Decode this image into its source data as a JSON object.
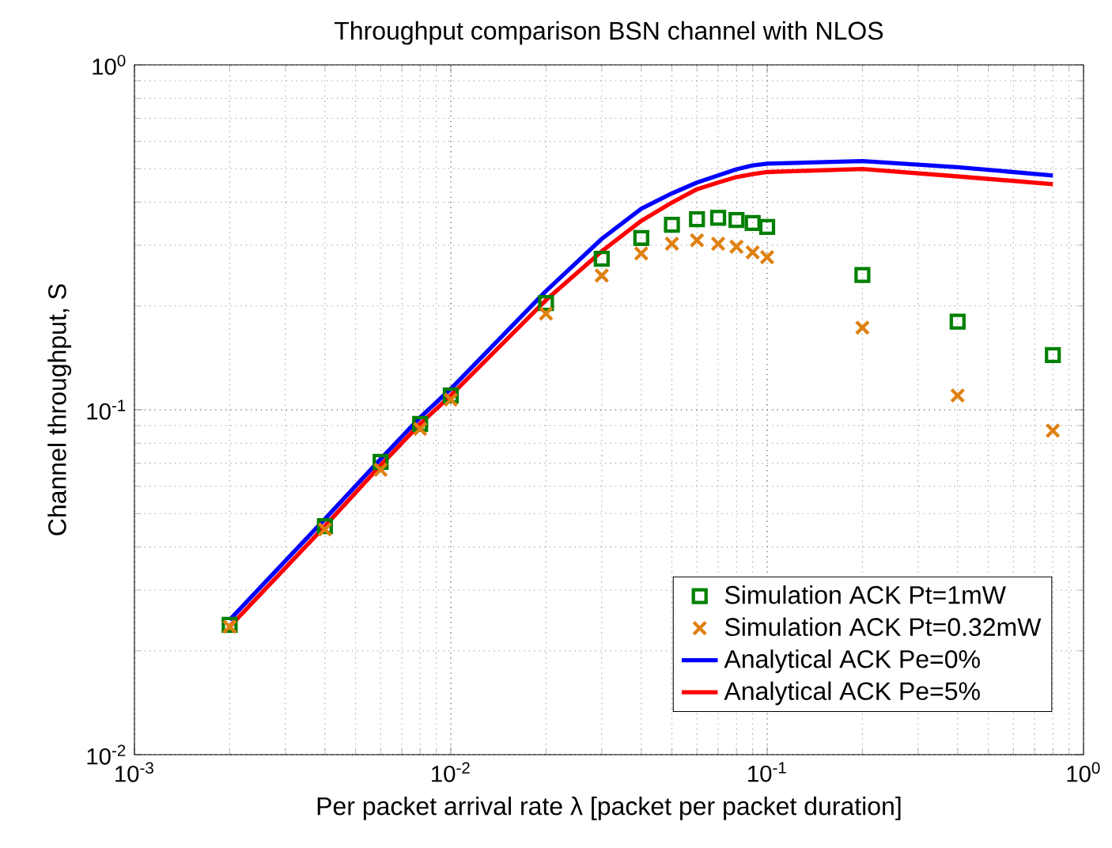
{
  "chart_data": {
    "type": "scatter",
    "title": "Throughput comparison BSN channel with  NLOS",
    "xlabel": "Per packet arrival rate λ [packet per packet duration]",
    "ylabel": "Channel throughput, S",
    "log": "xy",
    "grid": true,
    "legend": "bottom right",
    "xlim": [
      0.001,
      1
    ],
    "ylim": [
      0.01,
      1
    ],
    "xticks": [
      {
        "value": 0.001,
        "label": "10$^{-3}$"
      },
      {
        "value": 0.01,
        "label": "10$^{-2}$"
      },
      {
        "value": 0.1,
        "label": "10$^{-1}$"
      },
      {
        "value": 1,
        "label": "10$^{0}$"
      }
    ],
    "yticks": [
      {
        "value": 0.01,
        "label": "10$^{-2}$"
      },
      {
        "value": 0.1,
        "label": "10$^{-1}$"
      },
      {
        "value": 1,
        "label": "10$^{0}$"
      }
    ],
    "x": [
      0.002,
      0.004,
      0.006,
      0.008,
      0.01,
      0.02,
      0.03,
      0.04,
      0.05,
      0.06,
      0.07,
      0.08,
      0.09,
      0.1,
      0.2,
      0.4,
      0.8
    ],
    "series": [
      {
        "name": "Simulation ACK Pt=1mW",
        "marker": "square",
        "color": "#008000",
        "values": [
          0.0238,
          0.046,
          0.0706,
          0.091,
          0.11,
          0.204,
          0.274,
          0.315,
          0.344,
          0.357,
          0.36,
          0.355,
          0.348,
          0.339,
          0.246,
          0.18,
          0.144
        ]
      },
      {
        "name": "Simulation ACK Pt=0.32mW",
        "marker": "cross",
        "color": "#df8010",
        "values": [
          0.0235,
          0.045,
          0.067,
          0.088,
          0.107,
          0.19,
          0.245,
          0.284,
          0.303,
          0.31,
          0.303,
          0.297,
          0.286,
          0.277,
          0.173,
          0.11,
          0.087
        ]
      },
      {
        "name": "Analytical ACK Pe=0%",
        "type": "line",
        "line_style": "solid",
        "color": "#0000ff",
        "values": [
          0.0246,
          0.0482,
          0.072,
          0.095,
          0.115,
          0.221,
          0.313,
          0.383,
          0.424,
          0.456,
          0.478,
          0.498,
          0.511,
          0.517,
          0.526,
          0.505,
          0.478
        ]
      },
      {
        "name": "Analytical ACK Pe=5%",
        "type": "line",
        "line_style": "solid",
        "color": "#ff0000",
        "values": [
          0.0235,
          0.046,
          0.069,
          0.091,
          0.11,
          0.208,
          0.288,
          0.353,
          0.399,
          0.436,
          0.456,
          0.473,
          0.482,
          0.489,
          0.499,
          0.475,
          0.451
        ]
      }
    ]
  }
}
